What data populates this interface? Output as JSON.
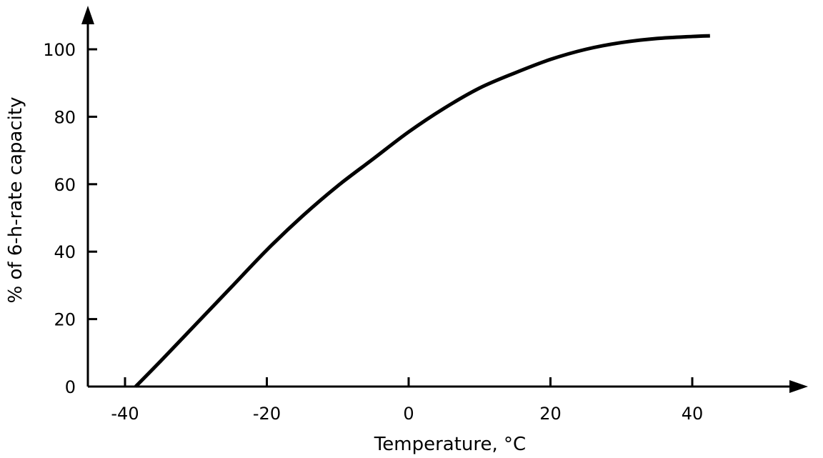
{
  "chart_data": {
    "type": "line",
    "title": "",
    "xlabel": "Temperature, °C",
    "ylabel": "% of 6-h-rate capacity",
    "xlim": [
      -45,
      56
    ],
    "ylim": [
      0,
      111
    ],
    "x_ticks": [
      -40,
      -20,
      0,
      20,
      40
    ],
    "y_ticks": [
      0,
      20,
      40,
      60,
      80,
      100
    ],
    "grid": false,
    "legend": "none",
    "line_color": "#000000",
    "series": [
      {
        "x": [
          -38.5,
          -35,
          -30,
          -25,
          -20,
          -15,
          -10,
          -5,
          0,
          5,
          10,
          15,
          20,
          25,
          30,
          35,
          40,
          42.5
        ],
        "y": [
          0,
          7.5,
          18.5,
          29.5,
          40.5,
          50.5,
          59.5,
          67.5,
          75.5,
          82.5,
          88.5,
          93.0,
          97.0,
          100.0,
          102.0,
          103.2,
          103.8,
          104.0
        ]
      }
    ]
  }
}
